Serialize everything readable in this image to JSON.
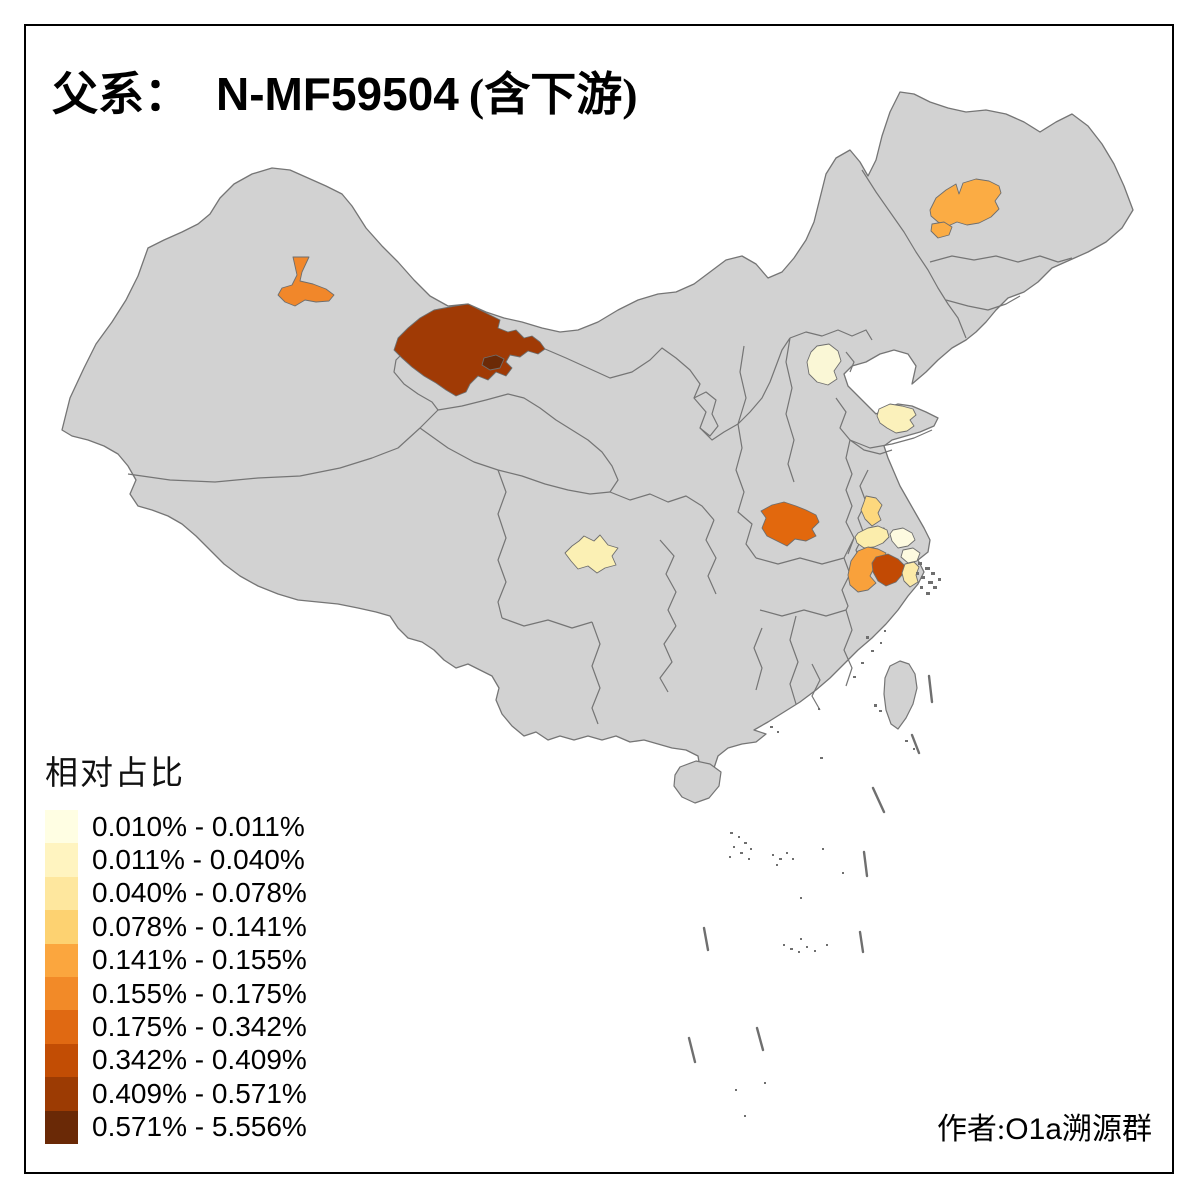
{
  "title": {
    "prefix_zh": "父系：",
    "code": "N-MF59504",
    "suffix_zh": "(含下游)"
  },
  "legend": {
    "title": "相对占比",
    "items": [
      {
        "label": "0.010% - 0.011%",
        "color": "#FFFEE3"
      },
      {
        "label": "0.011% - 0.040%",
        "color": "#FFF4C0"
      },
      {
        "label": "0.040% - 0.078%",
        "color": "#FEE79E"
      },
      {
        "label": "0.078% - 0.141%",
        "color": "#FDD271"
      },
      {
        "label": "0.141% - 0.155%",
        "color": "#FBA63E"
      },
      {
        "label": "0.155% - 0.175%",
        "color": "#F28A28"
      },
      {
        "label": "0.175% - 0.342%",
        "color": "#E06912"
      },
      {
        "label": "0.342% - 0.409%",
        "color": "#C24D04"
      },
      {
        "label": "0.409% - 0.571%",
        "color": "#9C3B03"
      },
      {
        "label": "0.571% - 5.556%",
        "color": "#6A2906"
      }
    ]
  },
  "attribution": {
    "prefix_zh": "作者:",
    "group": "O1a溯源群"
  },
  "map": {
    "colors": {
      "land": "#D2D2D2",
      "border": "#757575",
      "sea": "#FFFFFF",
      "island_marks": "#6F6F6F",
      "region_stroke": "#6E6E6E"
    },
    "regions": [
      {
        "id": "xinjiang-north-orange",
        "color": "#F1872A",
        "range": "0.155% - 0.175%"
      },
      {
        "id": "gansu-west-large",
        "color": "#A03A05",
        "range": "0.409% - 0.571%"
      },
      {
        "id": "gansu-west-small-dark",
        "color": "#6B2A07",
        "range": "0.571% - 5.556%"
      },
      {
        "id": "heilongjiang-west-large",
        "color": "#FBAC44",
        "range": "0.141% - 0.155%"
      },
      {
        "id": "heilongjiang-west-small",
        "color": "#FBAC44",
        "range": "0.141% - 0.155%"
      },
      {
        "id": "beijing-area",
        "color": "#FAF7D6",
        "range": "0.010% - 0.011%"
      },
      {
        "id": "shandong-peninsula",
        "color": "#FBF1BB",
        "range": "0.011% - 0.040%"
      },
      {
        "id": "sichuan-center",
        "color": "#FBF0B4",
        "range": "0.011% - 0.040%"
      },
      {
        "id": "henan-east",
        "color": "#E2680D",
        "range": "0.175% - 0.342%"
      },
      {
        "id": "jiangsu-coast",
        "color": "#FDD87D",
        "range": "0.078% - 0.141%"
      },
      {
        "id": "jiangsu-mid",
        "color": "#FBDE8F",
        "range": "0.040% - 0.078%"
      },
      {
        "id": "jiangsu-south-pale",
        "color": "#FBEDAC",
        "range": "0.040% - 0.078%"
      },
      {
        "id": "yangtze-north-cream",
        "color": "#FDFAE0",
        "range": "0.010% - 0.011%"
      },
      {
        "id": "shanghai-cream",
        "color": "#FDFAE0",
        "range": "0.010% - 0.011%"
      },
      {
        "id": "zhejiang-north-amber",
        "color": "#F9A13B",
        "range": "0.141% - 0.155%"
      },
      {
        "id": "zhejiang-north-dark",
        "color": "#C24A04",
        "range": "0.342% - 0.409%"
      },
      {
        "id": "zhejiang-east-pale",
        "color": "#FCEAA8",
        "range": "0.040% - 0.078%"
      }
    ]
  },
  "chart_data": {
    "type": "choropleth",
    "title": "父系： N-MF59504 (含下游)",
    "legend_title": "相对占比",
    "unit": "percent",
    "breaks_percent": [
      0.01,
      0.011,
      0.04,
      0.078,
      0.141,
      0.155,
      0.175,
      0.342,
      0.409,
      0.571,
      5.556
    ],
    "palette": [
      "#FFFEE3",
      "#FFF4C0",
      "#FEE79E",
      "#FDD271",
      "#FBA63E",
      "#F28A28",
      "#E06912",
      "#C24D04",
      "#9C3B03",
      "#6A2906"
    ],
    "attribution": "作者:O1a溯源群"
  }
}
